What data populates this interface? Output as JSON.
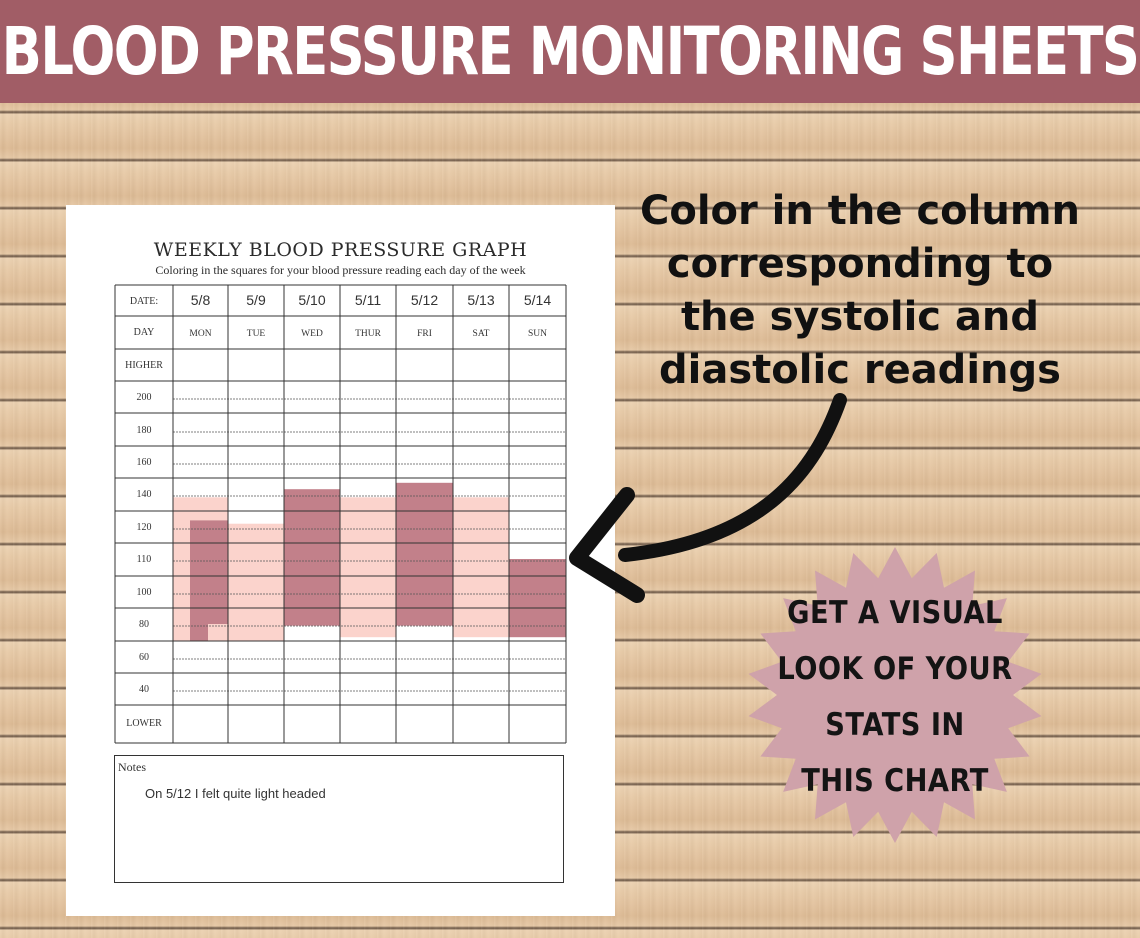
{
  "banner": {
    "title": "BLOOD PRESSURE MONITORING SHEETS"
  },
  "sheet": {
    "title": "WEEKLY BLOOD PRESSURE GRAPH",
    "subtitle": "Coloring in the squares for your blood pressure reading each day of the week",
    "row_headers": {
      "date": "DATE:",
      "day": "DAY",
      "higher": "HIGHER",
      "lower": "LOWER"
    },
    "dates": [
      "5/8",
      "5/9",
      "5/10",
      "5/11",
      "5/12",
      "5/13",
      "5/14"
    ],
    "days": [
      "MON",
      "TUE",
      "WED",
      "THUR",
      "FRI",
      "SAT",
      "SUN"
    ],
    "scale_labels": [
      "200",
      "180",
      "160",
      "140",
      "120",
      "110",
      "100",
      "80",
      "60",
      "40"
    ],
    "notes_label": "Notes",
    "notes_text": "On 5/12 I felt quite light headed"
  },
  "chart_data": {
    "type": "bar",
    "categories": [
      "5/8",
      "5/9",
      "5/10",
      "5/11",
      "5/12",
      "5/13",
      "5/14"
    ],
    "scale": [
      "200",
      "180",
      "160",
      "140",
      "120",
      "110",
      "100",
      "80",
      "60",
      "40"
    ],
    "columns": [
      {
        "day": "MON",
        "bands": [
          {
            "low": 70,
            "high": 138,
            "shade": "light",
            "part": "a"
          },
          {
            "low": 70,
            "high": 124,
            "shade": "dark",
            "part": "b"
          },
          {
            "low": 80,
            "high": 124,
            "shade": "dark",
            "part": "c"
          }
        ]
      },
      {
        "day": "TUE",
        "bands": [
          {
            "low": 70,
            "high": 122,
            "shade": "light"
          }
        ]
      },
      {
        "day": "WED",
        "bands": [
          {
            "low": 79,
            "high": 143,
            "shade": "dark"
          }
        ]
      },
      {
        "day": "THUR",
        "bands": [
          {
            "low": 72,
            "high": 138,
            "shade": "light"
          }
        ]
      },
      {
        "day": "FRI",
        "bands": [
          {
            "low": 79,
            "high": 147,
            "shade": "dark"
          }
        ]
      },
      {
        "day": "SAT",
        "bands": [
          {
            "low": 72,
            "high": 138,
            "shade": "light"
          }
        ]
      },
      {
        "day": "SUN",
        "bands": [
          {
            "low": 72,
            "high": 110,
            "shade": "dark"
          }
        ]
      }
    ],
    "colors": {
      "light": "#fbd3cc",
      "dark": "#c2808a"
    }
  },
  "callout": {
    "lines": [
      "Color in the column",
      "corresponding to",
      "the systolic and",
      "diastolic readings"
    ]
  },
  "burst": {
    "lines": [
      "GET A VISUAL",
      "LOOK OF YOUR",
      "STATS IN",
      "THIS CHART"
    ]
  },
  "colors": {
    "banner": "#a15d66",
    "burst": "#cfa2aa",
    "arrow": "#111111"
  }
}
